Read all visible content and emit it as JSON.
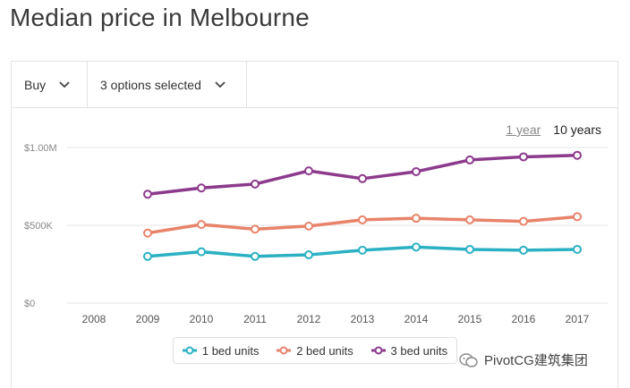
{
  "page": {
    "title": "Median price in Melbourne"
  },
  "filters": {
    "type_label": "Buy",
    "options_label": "3 options selected"
  },
  "range_toggle": {
    "one_year": "1 year",
    "ten_years": "10 years"
  },
  "colors": {
    "series_1": "#2bb1c3",
    "series_2": "#e8836a",
    "series_3": "#8c3a8c",
    "grid": "#e6e6e6",
    "axis_text": "#888888"
  },
  "chart_data": {
    "type": "line",
    "title": "Median price in Melbourne",
    "x": [
      "2008",
      "2009",
      "2010",
      "2011",
      "2012",
      "2013",
      "2014",
      "2015",
      "2016",
      "2017"
    ],
    "y_ticks": [
      {
        "value": 0,
        "label": "$0"
      },
      {
        "value": 500000,
        "label": "$500K"
      },
      {
        "value": 1000000,
        "label": "$1.00M"
      }
    ],
    "ylim": [
      0,
      1000000
    ],
    "grid": true,
    "legend_position": "bottom",
    "series": [
      {
        "name": "1 bed units",
        "color_key": "series_1",
        "values": [
          null,
          300000,
          330000,
          300000,
          310000,
          340000,
          360000,
          345000,
          340000,
          345000
        ]
      },
      {
        "name": "2 bed units",
        "color_key": "series_2",
        "values": [
          null,
          450000,
          505000,
          475000,
          495000,
          535000,
          545000,
          535000,
          525000,
          555000
        ]
      },
      {
        "name": "3 bed units",
        "color_key": "series_3",
        "values": [
          null,
          700000,
          740000,
          765000,
          850000,
          800000,
          845000,
          920000,
          940000,
          950000
        ]
      }
    ]
  },
  "watermark": {
    "text": "PivotCG建筑集团"
  }
}
